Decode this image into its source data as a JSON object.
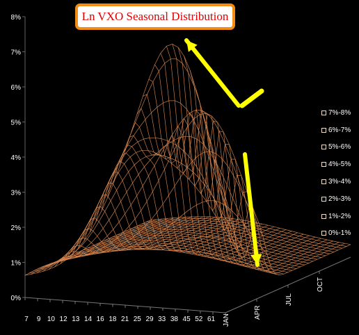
{
  "chart_data": {
    "type": "surface",
    "title": "Ln VXO Seasonal Distribution",
    "z_ticks": [
      "0%",
      "1%",
      "2%",
      "3%",
      "4%",
      "5%",
      "6%",
      "7%",
      "8%"
    ],
    "zlim": [
      0,
      8
    ],
    "x_ticks": [
      "7",
      "9",
      "10",
      "12",
      "13",
      "14",
      "16",
      "18",
      "21",
      "25",
      "29",
      "33",
      "38",
      "45",
      "52",
      "61",
      "JAN"
    ],
    "y_ticks": [
      "JAN",
      "APR",
      "JUL",
      "OCT"
    ],
    "legend": [
      "7%-8%",
      "6%-7%",
      "5%-6%",
      "4%-5%",
      "3%-4%",
      "2%-3%",
      "1%-2%",
      "0%-1%"
    ],
    "peak_front": {
      "x": "38",
      "month": "JAN",
      "z": 7.4
    },
    "peak_back": {
      "x": "38",
      "month": "APR",
      "z": 5.5
    },
    "surface_color": "#d98a52",
    "annotation_color": "#ffff00"
  }
}
